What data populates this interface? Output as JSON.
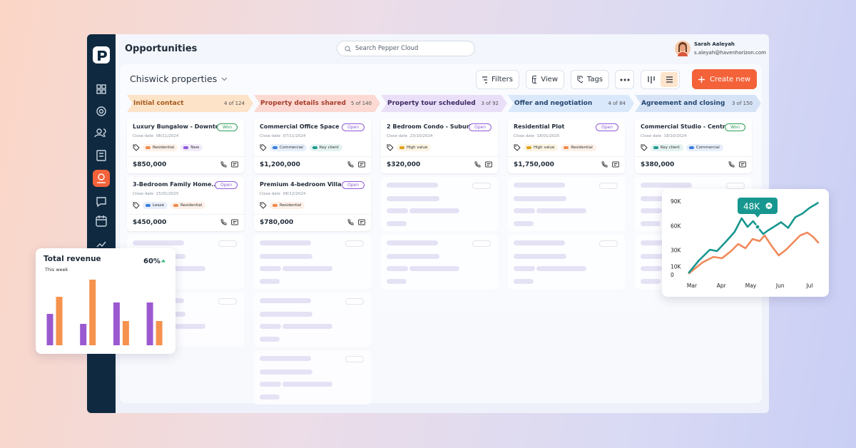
{
  "app": {
    "title": "Opportunities",
    "search_placeholder": "Search Pepper Cloud",
    "user": {
      "name": "Sarah Aaleyah",
      "email": "s.aleyah@havenhorizon.com"
    }
  },
  "board": {
    "name": "Chiswick properties",
    "toolbar": [
      "Filters",
      "View",
      "Tags"
    ],
    "create_button": "Create new",
    "close_date_label": "Close date",
    "stages": [
      {
        "name": "Initial contact",
        "count": "4 of 124",
        "color": "#fde3c8",
        "text_color": "#a65a1c",
        "cards": [
          {
            "title": "Luxury Bungalow - Downto...",
            "close_date": "08/11/2024",
            "status": {
              "label": "Won",
              "color": "#2e9e5b"
            },
            "tags": [
              {
                "label": "Residential",
                "color": "#f08a4b"
              },
              {
                "label": "New",
                "color": "#8e5bd6"
              }
            ],
            "amount": "$850,000"
          },
          {
            "title": "3-Bedroom Family Home...",
            "close_date": "15/01/2025",
            "status": {
              "label": "Open",
              "color": "#8e5bd6"
            },
            "tags": [
              {
                "label": "Lease",
                "color": "#3b7ddd"
              },
              {
                "label": "Residential",
                "color": "#f08a4b"
              }
            ],
            "amount": "$450,000"
          }
        ]
      },
      {
        "name": "Property details shared",
        "count": "5 of 140",
        "color": "#fcd9d2",
        "text_color": "#a63d2a",
        "cards": [
          {
            "title": "Commercial Office Space",
            "close_date": "07/11/2024",
            "status": {
              "label": "Open",
              "color": "#8e5bd6"
            },
            "tags": [
              {
                "label": "Commercial",
                "color": "#3b7ddd"
              },
              {
                "label": "Key client",
                "color": "#1f9d8f"
              }
            ],
            "amount": "$1,200,000"
          },
          {
            "title": "Premium 4-bedroom Villa",
            "close_date": "08/12/2024",
            "status": {
              "label": "Open",
              "color": "#8e5bd6"
            },
            "tags": [
              {
                "label": "Residential",
                "color": "#f08a4b"
              }
            ],
            "amount": "$780,000"
          }
        ]
      },
      {
        "name": "Property tour scheduled",
        "count": "3 of 92",
        "color": "#eadff8",
        "text_color": "#3d2a63",
        "cards": [
          {
            "title": "2 Bedroom Condo - Suburb...",
            "close_date": "23/10/2024",
            "status": {
              "label": "Open",
              "color": "#8e5bd6"
            },
            "tags": [
              {
                "label": "High value",
                "color": "#e0a11b"
              }
            ],
            "amount": "$320,000"
          }
        ]
      },
      {
        "name": "Offer and negotiation",
        "count": "4 of 84",
        "color": "#d9e8fa",
        "text_color": "#24466e",
        "cards": [
          {
            "title": "Residential Plot",
            "close_date": "18/01/2025",
            "status": {
              "label": "Open",
              "color": "#8e5bd6"
            },
            "tags": [
              {
                "label": "High value",
                "color": "#e0a11b"
              },
              {
                "label": "Residential",
                "color": "#f08a4b"
              }
            ],
            "amount": "$1,750,000"
          }
        ]
      },
      {
        "name": "Agreement and closing",
        "count": "3 of 150",
        "color": "#d6e3f7",
        "text_color": "#24466e",
        "cards": [
          {
            "title": "Commercial Studio - Centra...",
            "close_date": "18/10/2024",
            "status": {
              "label": "Won",
              "color": "#2e9e5b"
            },
            "tags": [
              {
                "label": "Key client",
                "color": "#1f9d8f"
              },
              {
                "label": "Commercial",
                "color": "#3b7ddd"
              }
            ],
            "amount": "$380,000"
          }
        ]
      }
    ]
  },
  "chart_data": [
    {
      "type": "bar",
      "title": "Total revenue",
      "subtitle": "This week",
      "annotation": "60%",
      "categories": [
        null,
        null,
        null,
        null
      ],
      "series": [
        {
          "color": "#9b59d0",
          "values": [
            44,
            30,
            60,
            60
          ]
        },
        {
          "color": "#f5924e",
          "values": [
            68,
            92,
            34,
            34
          ]
        }
      ],
      "ylim": [
        0,
        100
      ]
    },
    {
      "type": "line",
      "annotation": "48K",
      "x": [],
      "xlim": [
        -0.2,
        4.4
      ],
      "xticks": [
        {
          "value": 0,
          "label": "Mar"
        },
        {
          "value": 1,
          "label": "Apr"
        },
        {
          "value": 2,
          "label": "May"
        },
        {
          "value": 3,
          "label": "Jun"
        },
        {
          "value": 4,
          "label": "Jul"
        }
      ],
      "ylim": [
        0,
        90000
      ],
      "yticks": [
        {
          "value": 0,
          "label": "0"
        },
        {
          "value": 10000,
          "label": "10K"
        },
        {
          "value": 30000,
          "label": "30K"
        },
        {
          "value": 60000,
          "label": "60K"
        },
        {
          "value": 90000,
          "label": "90K"
        }
      ],
      "series": [
        {
          "color": "#17978f",
          "x": [
            -0.1,
            0.24,
            0.61,
            0.85,
            1.17,
            1.45,
            1.69,
            1.89,
            2.08,
            2.23,
            2.42,
            2.62,
            2.78,
            3.03,
            3.27,
            3.51,
            3.75,
            3.99,
            4.28
          ],
          "values": [
            2600,
            17500,
            30600,
            28800,
            41100,
            52400,
            69000,
            58500,
            65500,
            58500,
            49800,
            55000,
            58500,
            64200,
            57200,
            70300,
            74700,
            81600,
            87800
          ]
        },
        {
          "color": "#f0895a",
          "x": [
            -0.1,
            0.36,
            0.73,
            1.02,
            1.33,
            1.57,
            1.82,
            2.06,
            2.3,
            2.47,
            2.71,
            2.95,
            3.2,
            3.44,
            3.68,
            3.92,
            4.12,
            4.29
          ],
          "values": [
            1700,
            14900,
            21800,
            20100,
            28800,
            37600,
            32300,
            43700,
            41100,
            48100,
            35000,
            23600,
            30600,
            39300,
            48100,
            51500,
            46300,
            39300
          ]
        }
      ]
    }
  ]
}
